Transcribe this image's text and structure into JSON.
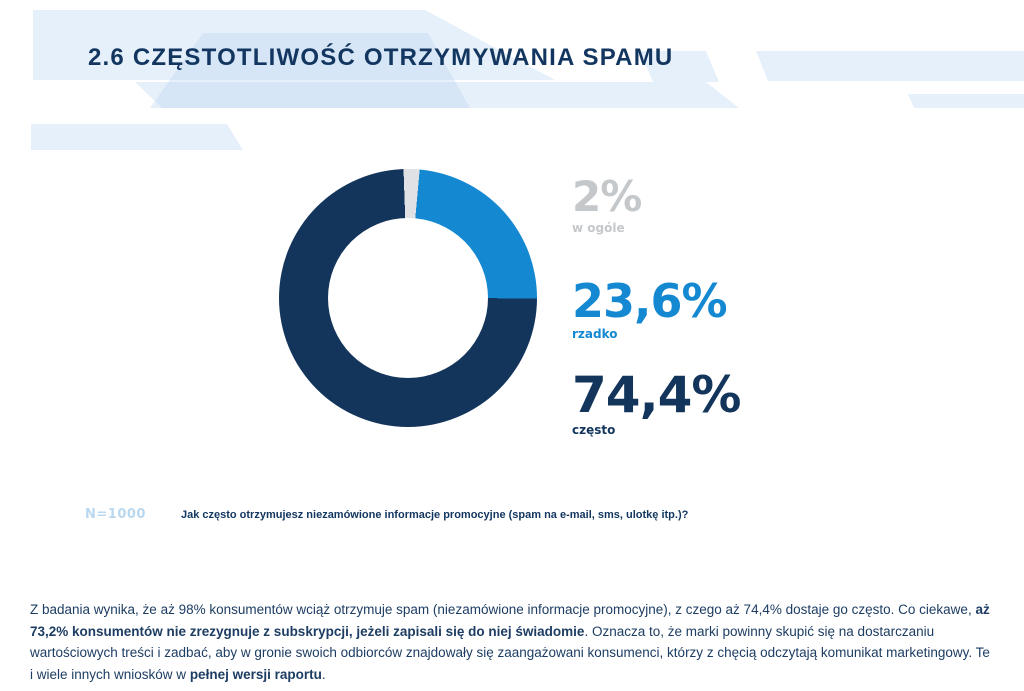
{
  "header": {
    "title": "2.6  CZĘSTOTLIWOŚĆ OTRZYMYWANIA SPAMU"
  },
  "chart_data": {
    "type": "pie",
    "donut": true,
    "title": "2.6 Częstotliwość otrzymywania spamu",
    "categories": [
      "w ogóle",
      "rzadko",
      "często"
    ],
    "values": [
      2,
      23.6,
      74.4
    ],
    "start_angle_deg": -2,
    "clockwise_from_top": true,
    "slices": [
      {
        "label": "w ogóle",
        "value": 2,
        "display": "2%",
        "color": "#dfe1e4"
      },
      {
        "label": "rzadko",
        "value": 23.6,
        "display": "23,6%",
        "color": "#1488d1"
      },
      {
        "label": "często",
        "value": 74.4,
        "display": "74,4%",
        "color": "#13355c"
      }
    ],
    "legend_position": "right"
  },
  "legend": [
    {
      "value": "2%",
      "label": "w ogóle",
      "color": "#c4c8cb"
    },
    {
      "value": "23,6%",
      "label": "rzadko",
      "color": "#1488d1"
    },
    {
      "value": "74,4%",
      "label": "często",
      "color": "#13355c"
    }
  ],
  "note": {
    "n_label": "N=1000",
    "question": "Jak często otrzymujesz niezamówione informacje promocyjne (spam na e-mail, sms, ulotkę itp.)?"
  },
  "paragraph": {
    "segments": [
      {
        "text": "Z badania wynika, że aż 98% konsumentów wciąż otrzymuje spam (niezamówione informacje promocyjne), z czego aż 74,4% dostaje go często. Co ciekawe, ",
        "bold": false
      },
      {
        "text": "aż 73,2% konsumentów nie zrezygnuje z subskrypcji, jeżeli zapisali się do niej świadomie",
        "bold": true
      },
      {
        "text": ". Oznacza to, że marki powinny skupić się na dostarczaniu wartościowych treści i zadbać, aby w gronie swoich odbiorców znajdowały się zaangażowani konsumenci, którzy z chęcią odczytają komunikat marketingowy. Te i wiele innych wniosków w ",
        "bold": false
      },
      {
        "text": "pełnej wersji raportu",
        "bold": true,
        "link": true,
        "name": "full-report-link"
      },
      {
        "text": ".",
        "bold": false
      }
    ]
  },
  "colors": {
    "accent_navy": "#13355c",
    "accent_blue": "#1488d1",
    "muted_gray": "#c4c8cb",
    "deco_blue": "#e8f1fa"
  }
}
